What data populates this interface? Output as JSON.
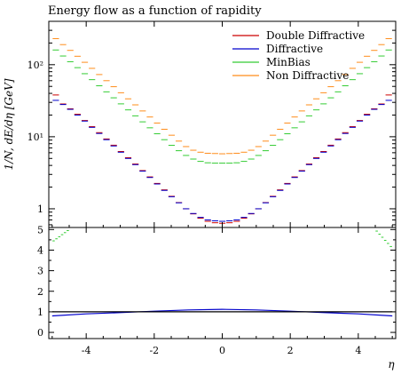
{
  "chart_data": {
    "type": "line",
    "title": "Energy flow as a function of rapidity",
    "xlabel": "η",
    "ylabel": "1/N, dE/dη [GeV]",
    "main_panel": {
      "yscale": "log",
      "ylim": [
        0.55,
        400
      ],
      "yticks": [
        {
          "value": 1,
          "label": "1"
        },
        {
          "value": 10,
          "label": "10¹"
        },
        {
          "value": 100,
          "label": "10²"
        }
      ]
    },
    "ratio_panel": {
      "ylim": [
        -0.3,
        5.1
      ],
      "yticks": [
        0,
        1,
        2,
        3,
        4,
        5
      ]
    },
    "xlim": [
      -5.1,
      5.1
    ],
    "xticks": [
      -4,
      -2,
      0,
      2,
      4
    ],
    "legend_position": "top-right",
    "series": [
      {
        "name": "Double Diffractive",
        "color": "#cc0000",
        "values": [
          38,
          28.5,
          24.4,
          20.5,
          16.8,
          13.8,
          11.4,
          9.32,
          7.63,
          6.24,
          5.12,
          4.18,
          3.39,
          2.77,
          2.25,
          1.83,
          1.49,
          1.22,
          1.0,
          0.85,
          0.74,
          0.67,
          0.64,
          0.63,
          0.64,
          0.67,
          0.74,
          0.85,
          1.0,
          1.22,
          1.49,
          1.83,
          2.25,
          2.77,
          3.39,
          4.18,
          5.12,
          6.24,
          7.63,
          9.32,
          11.4,
          13.8,
          16.8,
          20.5,
          24.4,
          28.5,
          38
        ]
      },
      {
        "name": "Diffractive",
        "color": "#0000cc",
        "values": [
          32,
          28.0,
          24.0,
          20.0,
          16.5,
          13.5,
          11.1,
          9.1,
          7.45,
          6.1,
          5.0,
          4.1,
          3.33,
          2.72,
          2.21,
          1.8,
          1.47,
          1.21,
          1.0,
          0.86,
          0.76,
          0.7,
          0.68,
          0.67,
          0.68,
          0.7,
          0.76,
          0.86,
          1.0,
          1.21,
          1.47,
          1.8,
          2.21,
          2.72,
          3.33,
          4.1,
          5.0,
          6.1,
          7.45,
          9.1,
          11.1,
          13.5,
          16.5,
          20.0,
          24.0,
          28.0,
          32
        ]
      },
      {
        "name": "MinBias",
        "color": "#33cc33",
        "values": [
          160,
          132,
          110,
          91,
          75,
          62,
          51,
          42,
          34.7,
          28.6,
          23.6,
          19.5,
          16.1,
          13.3,
          11.0,
          9.1,
          7.6,
          6.4,
          5.5,
          4.9,
          4.55,
          4.35,
          4.3,
          4.3,
          4.3,
          4.35,
          4.55,
          4.9,
          5.5,
          6.4,
          7.6,
          9.1,
          11.0,
          13.3,
          16.1,
          19.5,
          23.6,
          28.6,
          34.7,
          42,
          51,
          62,
          75,
          91,
          110,
          132,
          160
        ]
      },
      {
        "name": "Non Diffractive",
        "color": "#ff8c1a",
        "values": [
          230,
          190,
          158,
          131,
          108,
          89,
          73,
          60,
          49.5,
          40.8,
          33.6,
          27.7,
          22.8,
          18.8,
          15.5,
          12.7,
          10.5,
          8.7,
          7.3,
          6.5,
          6.1,
          5.9,
          5.85,
          5.8,
          5.85,
          5.9,
          6.1,
          6.5,
          7.3,
          8.7,
          10.5,
          12.7,
          15.5,
          18.8,
          22.8,
          27.7,
          33.6,
          40.8,
          49.5,
          60,
          73,
          89,
          108,
          131,
          158,
          190,
          230
        ]
      }
    ],
    "x_bin_edges_start": -5.0,
    "x_bin_width": 0.2128,
    "ratio_series": [
      {
        "name": "MinBias",
        "color": "#33cc33",
        "segments": [
          {
            "x": [
              -5.0,
              -4.5
            ],
            "y": [
              4.4,
              5.0
            ]
          },
          {
            "x": [
              4.5,
              5.0
            ],
            "y": [
              5.0,
              4.1
            ]
          }
        ]
      },
      {
        "name": "Diffractive",
        "color": "#0000cc",
        "x": [
          -5.0,
          -4,
          -3,
          -2,
          -1,
          0,
          1,
          2,
          3,
          4,
          5.0
        ],
        "y": [
          0.8,
          0.9,
          0.96,
          1.03,
          1.09,
          1.12,
          1.09,
          1.03,
          0.96,
          0.9,
          0.8
        ]
      },
      {
        "name": "reference",
        "color": "#000000",
        "x": [
          -5.0,
          5.0
        ],
        "y": [
          1.0,
          1.0
        ]
      }
    ]
  }
}
